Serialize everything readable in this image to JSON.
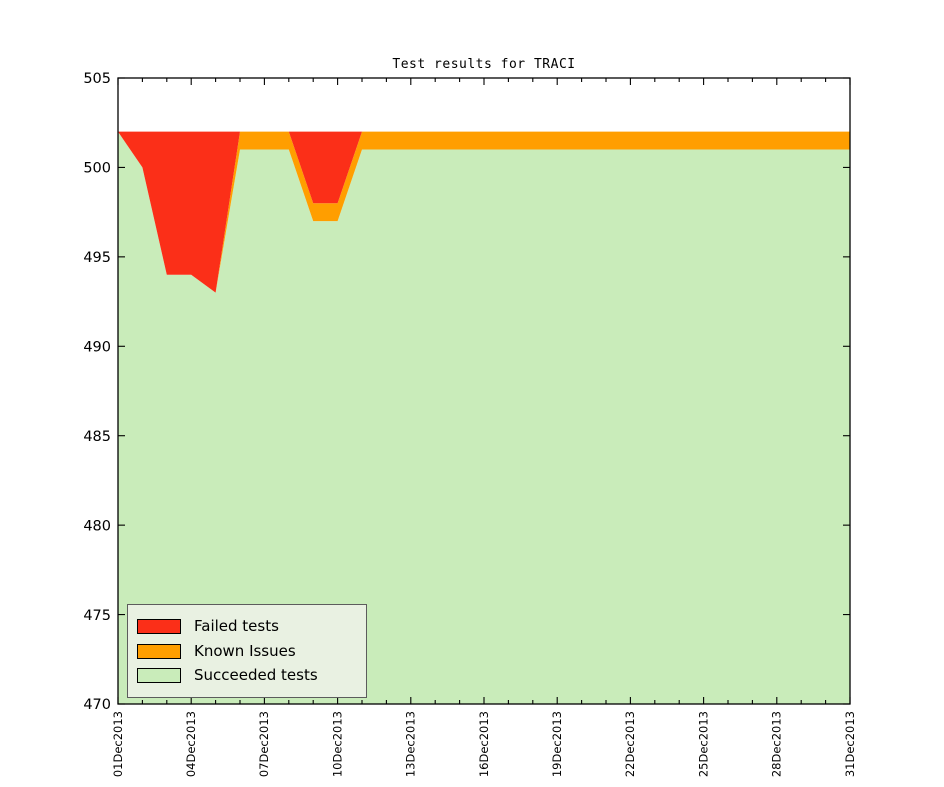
{
  "title": "Test results for TRACI",
  "colors": {
    "failed": "#fb2f18",
    "known_issues": "#ff9e00",
    "succeeded": "#c9ecba",
    "legend_background": "#e9f1e2",
    "legend_border": "#5c5c5c",
    "axis": "#000000",
    "background": "#ffffff"
  },
  "legend": {
    "position": "lower left",
    "items": [
      {
        "label": "Failed tests",
        "color": "#fb2f18"
      },
      {
        "label": "Known Issues",
        "color": "#ff9e00"
      },
      {
        "label": "Succeeded tests",
        "color": "#c9ecba"
      }
    ]
  },
  "chart_data": {
    "type": "area",
    "stacked": true,
    "title": "Test results for TRACI",
    "xlabel": "",
    "ylabel": "",
    "grid": false,
    "stack_total": 502,
    "ylim": [
      470,
      505
    ],
    "yticks": [
      470,
      475,
      480,
      485,
      490,
      495,
      500,
      505
    ],
    "x": [
      "01Dec2013",
      "02Dec2013",
      "03Dec2013",
      "04Dec2013",
      "05Dec2013",
      "06Dec2013",
      "07Dec2013",
      "08Dec2013",
      "09Dec2013",
      "10Dec2013",
      "11Dec2013",
      "12Dec2013",
      "13Dec2013",
      "14Dec2013",
      "15Dec2013",
      "16Dec2013",
      "17Dec2013",
      "18Dec2013",
      "19Dec2013",
      "20Dec2013",
      "21Dec2013",
      "22Dec2013",
      "23Dec2013",
      "24Dec2013",
      "25Dec2013",
      "26Dec2013",
      "27Dec2013",
      "28Dec2013",
      "29Dec2013",
      "30Dec2013",
      "31Dec2013"
    ],
    "xtick_major_indices": [
      0,
      3,
      6,
      9,
      12,
      15,
      18,
      21,
      24,
      27,
      30
    ],
    "xtick_labels": [
      "01Dec2013",
      "04Dec2013",
      "07Dec2013",
      "10Dec2013",
      "13Dec2013",
      "16Dec2013",
      "19Dec2013",
      "22Dec2013",
      "25Dec2013",
      "28Dec2013",
      "31Dec2013"
    ],
    "stack_order_bottom_to_top": [
      "Succeeded tests",
      "Known Issues",
      "Failed tests"
    ],
    "series": [
      {
        "name": "Failed tests",
        "color": "#fb2f18",
        "values": [
          0,
          2,
          8,
          8,
          9,
          0,
          0,
          0,
          4,
          4,
          0,
          0,
          0,
          0,
          0,
          0,
          0,
          0,
          0,
          0,
          0,
          0,
          0,
          0,
          0,
          0,
          0,
          0,
          0,
          0,
          0
        ]
      },
      {
        "name": "Known Issues",
        "color": "#ff9e00",
        "values": [
          0,
          0,
          0,
          0,
          0,
          1,
          1,
          1,
          1,
          1,
          1,
          1,
          1,
          1,
          1,
          1,
          1,
          1,
          1,
          1,
          1,
          1,
          1,
          1,
          1,
          1,
          1,
          1,
          1,
          1,
          1
        ]
      },
      {
        "name": "Succeeded tests",
        "color": "#c9ecba",
        "values": [
          502,
          500,
          494,
          494,
          493,
          501,
          501,
          501,
          497,
          497,
          501,
          501,
          501,
          501,
          501,
          501,
          501,
          501,
          501,
          501,
          501,
          501,
          501,
          501,
          501,
          501,
          501,
          501,
          501,
          501,
          501
        ]
      }
    ]
  }
}
